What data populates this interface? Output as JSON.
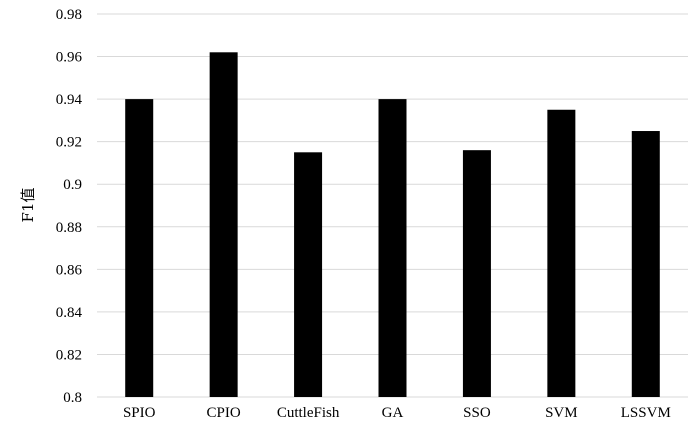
{
  "chart_data": {
    "type": "bar",
    "categories": [
      "SPIO",
      "CPIO",
      "CuttleFish",
      "GA",
      "SSO",
      "SVM",
      "LSSVM"
    ],
    "values": [
      0.94,
      0.962,
      0.915,
      0.94,
      0.916,
      0.935,
      0.925
    ],
    "ylabel": "F1值",
    "xlabel": "",
    "ylim": [
      0.8,
      0.98
    ],
    "yticks": [
      "0.8",
      "0.82",
      "0.84",
      "0.86",
      "0.88",
      "0.9",
      "0.92",
      "0.94",
      "0.96",
      "0.98"
    ],
    "grid": true,
    "colors": {
      "bar": "#000000",
      "grid": "#d9d9d9",
      "axis": "#d9d9d9",
      "text": "#000000"
    }
  }
}
